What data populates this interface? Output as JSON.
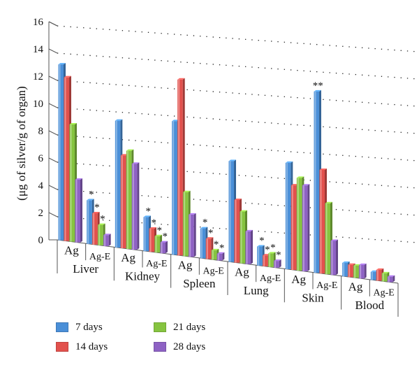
{
  "chart_data": {
    "type": "bar",
    "title": "",
    "ylabel": "(μg of silver/g of organ)",
    "ylim": [
      0,
      16
    ],
    "yticks": [
      "0",
      "2",
      "4",
      "6",
      "8",
      "10",
      "12",
      "14",
      "16"
    ],
    "grid": true,
    "legend_position": "bottom-left",
    "organs": [
      "Liver",
      "Kidney",
      "Spleen",
      "Lung",
      "Skin",
      "Blood"
    ],
    "categories": [
      "Ag",
      "Ag-E",
      "Ag",
      "Ag-E",
      "Ag",
      "Ag-E",
      "Ag",
      "Ag-E",
      "Ag",
      "Ag-E",
      "Ag",
      "Ag-E"
    ],
    "series": [
      {
        "name": "7 days",
        "color": "#4a8fd8",
        "values": [
          12.9,
          3.2,
          9.3,
          2.5,
          9.8,
          2.2,
          7.4,
          1.4,
          7.8,
          13.3,
          1.0,
          0.6
        ]
      },
      {
        "name": "14 days",
        "color": "#e2514d",
        "values": [
          12.0,
          2.3,
          6.8,
          1.7,
          12.9,
          1.5,
          4.6,
          0.8,
          6.2,
          7.6,
          0.9,
          0.8
        ]
      },
      {
        "name": "21 days",
        "color": "#86c440",
        "values": [
          8.6,
          1.5,
          7.2,
          1.2,
          4.7,
          0.7,
          3.8,
          1.0,
          6.8,
          5.2,
          0.9,
          0.6
        ]
      },
      {
        "name": "28 days",
        "color": "#8e62c4",
        "values": [
          4.6,
          0.8,
          6.3,
          0.8,
          3.1,
          0.5,
          2.4,
          0.5,
          6.3,
          2.5,
          1.0,
          0.4
        ]
      }
    ],
    "annotations": [
      {
        "category_index": 1,
        "series": [
          0,
          1,
          2
        ],
        "text": "*"
      },
      {
        "category_index": 3,
        "series": [
          0,
          1,
          2,
          3
        ],
        "text": "*"
      },
      {
        "category_index": 5,
        "series": [
          0,
          1,
          2,
          3
        ],
        "text": "*"
      },
      {
        "category_index": 7,
        "series": [
          0,
          1,
          2,
          3
        ],
        "text": "*"
      },
      {
        "category_index": 9,
        "series": [
          0
        ],
        "text": "**"
      }
    ]
  }
}
